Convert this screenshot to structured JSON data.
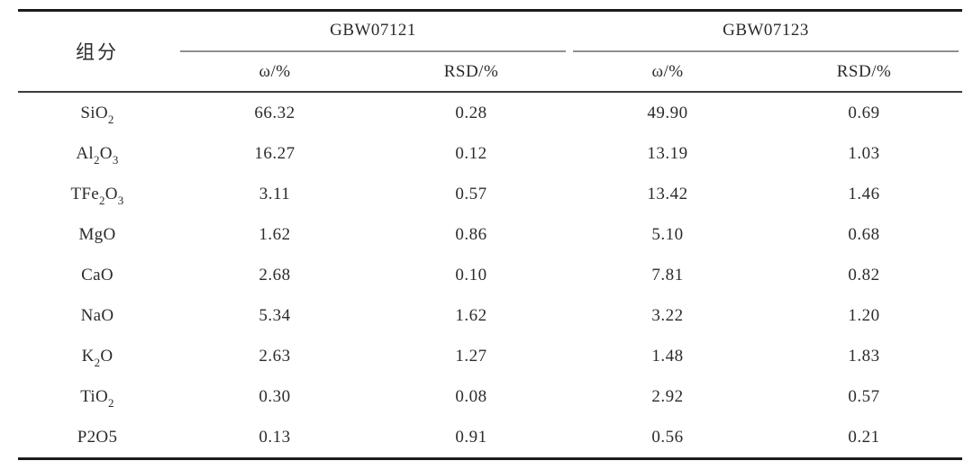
{
  "table": {
    "component_header": "组分",
    "groups": [
      {
        "label": "GBW07121",
        "columns": [
          "ω/%",
          "RSD/%"
        ]
      },
      {
        "label": "GBW07123",
        "columns": [
          "ω/%",
          "RSD/%"
        ]
      }
    ],
    "rows": [
      {
        "component": [
          {
            "t": "SiO",
            "s": "2"
          }
        ],
        "values": [
          "66.32",
          "0.28",
          "49.90",
          "0.69"
        ]
      },
      {
        "component": [
          {
            "t": "Al",
            "s": "2"
          },
          {
            "t": "O",
            "s": "3"
          }
        ],
        "values": [
          "16.27",
          "0.12",
          "13.19",
          "1.03"
        ]
      },
      {
        "component": [
          {
            "t": "TFe",
            "s": "2"
          },
          {
            "t": "O",
            "s": "3"
          }
        ],
        "values": [
          "3.11",
          "0.57",
          "13.42",
          "1.46"
        ]
      },
      {
        "component": [
          {
            "t": "MgO"
          }
        ],
        "values": [
          "1.62",
          "0.86",
          "5.10",
          "0.68"
        ]
      },
      {
        "component": [
          {
            "t": "CaO"
          }
        ],
        "values": [
          "2.68",
          "0.10",
          "7.81",
          "0.82"
        ]
      },
      {
        "component": [
          {
            "t": "NaO"
          }
        ],
        "values": [
          "5.34",
          "1.62",
          "3.22",
          "1.20"
        ]
      },
      {
        "component": [
          {
            "t": "K",
            "s": "2"
          },
          {
            "t": "O"
          }
        ],
        "values": [
          "2.63",
          "1.27",
          "1.48",
          "1.83"
        ]
      },
      {
        "component": [
          {
            "t": "TiO",
            "s": "2"
          }
        ],
        "values": [
          "0.30",
          "0.08",
          "2.92",
          "0.57"
        ]
      },
      {
        "component": [
          {
            "t": "P2O5"
          }
        ],
        "values": [
          "0.13",
          "0.91",
          "0.56",
          "0.21"
        ]
      }
    ],
    "colors": {
      "rule_heavy": "#1b1b1b",
      "rule_medium": "#3c3c3c",
      "rule_group": "#8f8f8f",
      "text": "#2b2b2b",
      "background": "#ffffff"
    }
  }
}
